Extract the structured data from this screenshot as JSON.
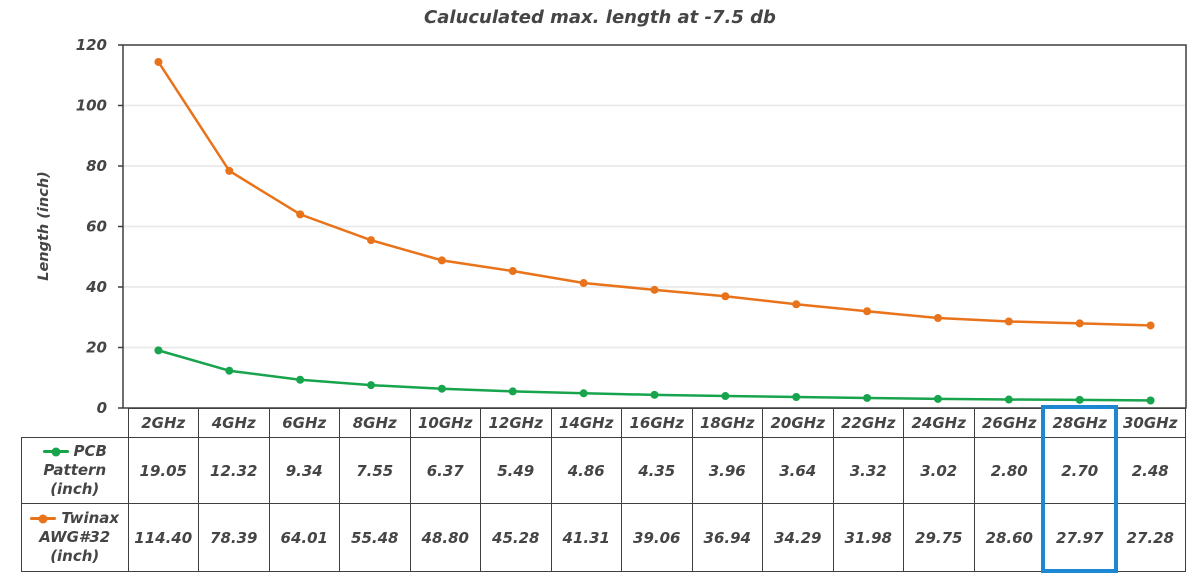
{
  "title": "Caluculated max. length at -7.5 db",
  "colors": {
    "pcb_green": "#17A44D",
    "twinax_orange": "#E8731A",
    "highlight_blue": "#1D87D2",
    "text": "#454545",
    "grid": "#EAEAEA",
    "border": "#3f3f3f"
  },
  "chart_data": {
    "type": "line",
    "title": "Caluculated max. length at -7.5 db",
    "xlabel": "",
    "ylabel": "Length (inch)",
    "ylim": [
      0,
      120
    ],
    "yticks": [
      0,
      20,
      40,
      60,
      80,
      100,
      120
    ],
    "grid": "horizontal",
    "legend_position": "table-left",
    "categories": [
      "2GHz",
      "4GHz",
      "6GHz",
      "8GHz",
      "10GHz",
      "12GHz",
      "14GHz",
      "16GHz",
      "18GHz",
      "20GHz",
      "22GHz",
      "24GHz",
      "26GHz",
      "28GHz",
      "30GHz"
    ],
    "series": [
      {
        "name": "PCB Pattern (inch)",
        "color": "#17A44D",
        "values": [
          19.05,
          12.32,
          9.34,
          7.55,
          6.37,
          5.49,
          4.86,
          4.35,
          3.96,
          3.64,
          3.32,
          3.02,
          2.8,
          2.7,
          2.48
        ],
        "display": [
          "19.05",
          "12.32",
          "9.34",
          "7.55",
          "6.37",
          "5.49",
          "4.86",
          "4.35",
          "3.96",
          "3.64",
          "3.32",
          "3.02",
          "2.80",
          "2.70",
          "2.48"
        ]
      },
      {
        "name": "Twinax AWG#32 (inch)",
        "color": "#E8731A",
        "values": [
          114.4,
          78.39,
          64.01,
          55.48,
          48.8,
          45.28,
          41.31,
          39.06,
          36.94,
          34.29,
          31.98,
          29.75,
          28.6,
          27.97,
          27.28
        ],
        "display": [
          "114.40",
          "78.39",
          "64.01",
          "55.48",
          "48.80",
          "45.28",
          "41.31",
          "39.06",
          "36.94",
          "34.29",
          "31.98",
          "29.75",
          "28.60",
          "27.97",
          "27.28"
        ]
      }
    ],
    "highlighted_category": "28GHz"
  }
}
